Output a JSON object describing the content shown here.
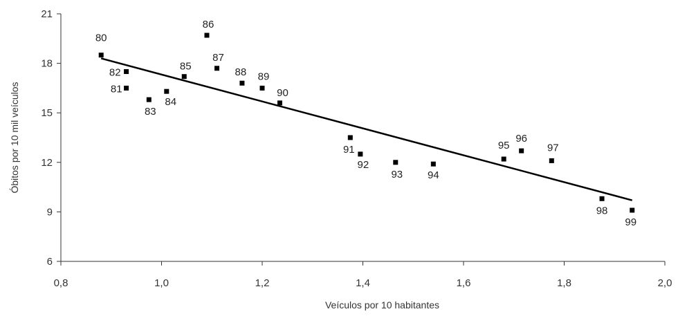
{
  "chart_data": {
    "type": "scatter",
    "xlabel": "Veículos por 10 habitantes",
    "ylabel": "Óbitos por 10 mil veículos",
    "xlim": [
      0.8,
      2.0
    ],
    "ylim": [
      6,
      21
    ],
    "x_ticks": [
      0.8,
      1.0,
      1.2,
      1.4,
      1.6,
      1.8,
      2.0
    ],
    "x_tick_labels": [
      "0,8",
      "1,0",
      "1,2",
      "1,4",
      "1,6",
      "1,8",
      "2,0"
    ],
    "y_ticks": [
      6,
      9,
      12,
      15,
      18,
      21
    ],
    "y_tick_labels": [
      "6",
      "9",
      "12",
      "15",
      "18",
      "21"
    ],
    "grid": false,
    "points": [
      {
        "label": "80",
        "x": 0.88,
        "y": 18.5
      },
      {
        "label": "81",
        "x": 0.93,
        "y": 16.5
      },
      {
        "label": "82",
        "x": 0.93,
        "y": 17.5
      },
      {
        "label": "83",
        "x": 0.975,
        "y": 15.8
      },
      {
        "label": "84",
        "x": 1.01,
        "y": 16.3
      },
      {
        "label": "85",
        "x": 1.045,
        "y": 17.2
      },
      {
        "label": "86",
        "x": 1.09,
        "y": 19.7
      },
      {
        "label": "87",
        "x": 1.11,
        "y": 17.7
      },
      {
        "label": "88",
        "x": 1.16,
        "y": 16.8
      },
      {
        "label": "89",
        "x": 1.2,
        "y": 16.5
      },
      {
        "label": "90",
        "x": 1.235,
        "y": 15.6
      },
      {
        "label": "91",
        "x": 1.375,
        "y": 13.5
      },
      {
        "label": "92",
        "x": 1.395,
        "y": 12.5
      },
      {
        "label": "93",
        "x": 1.465,
        "y": 12.0
      },
      {
        "label": "94",
        "x": 1.54,
        "y": 11.9
      },
      {
        "label": "95",
        "x": 1.68,
        "y": 12.2
      },
      {
        "label": "96",
        "x": 1.715,
        "y": 12.7
      },
      {
        "label": "97",
        "x": 1.775,
        "y": 12.1
      },
      {
        "label": "98",
        "x": 1.875,
        "y": 9.8
      },
      {
        "label": "99",
        "x": 1.935,
        "y": 9.1
      }
    ],
    "trendline": {
      "x": [
        0.88,
        1.935
      ],
      "y": [
        18.3,
        9.7
      ]
    }
  }
}
